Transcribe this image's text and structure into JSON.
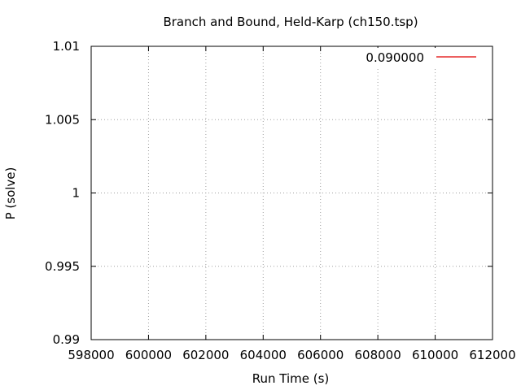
{
  "chart_data": {
    "type": "line",
    "title": "Branch and Bound, Held-Karp (ch150.tsp)",
    "xlabel": "Run Time (s)",
    "ylabel": "P (solve)",
    "xlim": [
      598000,
      612000
    ],
    "ylim": [
      0.99,
      1.01
    ],
    "x_ticks": [
      598000,
      600000,
      602000,
      604000,
      606000,
      608000,
      610000,
      612000
    ],
    "x_tick_labels": [
      "598000",
      "600000",
      "602000",
      "604000",
      "606000",
      "608000",
      "610000",
      "612000"
    ],
    "y_ticks": [
      0.99,
      0.995,
      1,
      1.005,
      1.01
    ],
    "y_tick_labels": [
      "0.99",
      "0.995",
      "1",
      "1.005",
      "1.01"
    ],
    "grid": true,
    "legend_position": "top-right",
    "series": [
      {
        "name": "0.090000",
        "color": "#e00000",
        "x": [],
        "y": []
      }
    ]
  }
}
